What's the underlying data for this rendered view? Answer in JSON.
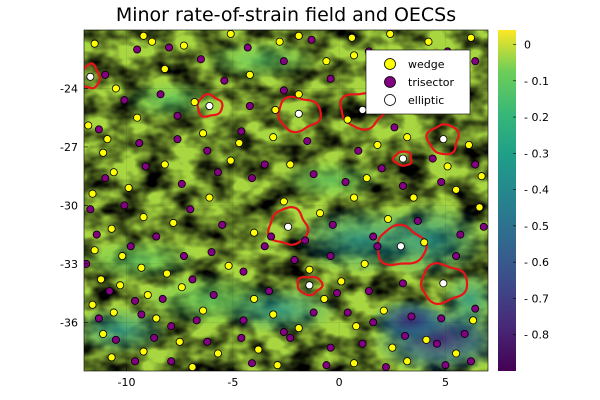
{
  "chart_data": {
    "type": "scatter",
    "title": "Minor rate-of-strain field and OECSs",
    "xlabel": "",
    "ylabel": "",
    "xlim": [
      -12,
      7
    ],
    "ylim": [
      -38.5,
      -21.0
    ],
    "xticks": [
      -10,
      -5,
      0,
      5
    ],
    "xtick_labels": [
      "-10",
      "-5",
      "0",
      "5"
    ],
    "yticks": [
      -24,
      -27,
      -30,
      -33,
      -36
    ],
    "ytick_labels": [
      "-24",
      "-27",
      "-30",
      "-33",
      "-36"
    ],
    "grid": true,
    "legend_position": "top-right",
    "background": {
      "type": "heatmap",
      "description": "minor rate-of-strain field",
      "colormap": "viridis",
      "clim": [
        -0.9,
        0.04
      ],
      "colorbar_ticks": [
        0,
        -0.1,
        -0.2,
        -0.3,
        -0.4,
        -0.5,
        -0.6,
        -0.7,
        -0.8
      ],
      "colorbar_tick_labels": [
        "0",
        "- 0.1",
        "- 0.2",
        "- 0.3",
        "- 0.4",
        "- 0.5",
        "- 0.6",
        "- 0.7",
        "- 0.8"
      ]
    },
    "series": [
      {
        "name": "wedge",
        "color": "#ffff00",
        "points": [
          [
            -11.5,
            -21.7
          ],
          [
            -9.2,
            -21.3
          ],
          [
            -8.8,
            -21.6
          ],
          [
            -7.3,
            -21.8
          ],
          [
            -5.1,
            -21.2
          ],
          [
            -2.8,
            -21.6
          ],
          [
            -1.9,
            -21.3
          ],
          [
            0.6,
            -21.4
          ],
          [
            2.4,
            -21.2
          ],
          [
            4.2,
            -21.6
          ],
          [
            6.2,
            -21.4
          ],
          [
            -10.5,
            -24.0
          ],
          [
            -8.2,
            -23.0
          ],
          [
            -6.8,
            -24.7
          ],
          [
            -4.2,
            -23.3
          ],
          [
            -0.6,
            -22.6
          ],
          [
            0.7,
            -22.3
          ],
          [
            -3.0,
            -25.1
          ],
          [
            -1.9,
            -24.3
          ],
          [
            -11.8,
            -25.9
          ],
          [
            -10.9,
            -26.6
          ],
          [
            -11.1,
            -27.3
          ],
          [
            -10.6,
            -28.3
          ],
          [
            -9.5,
            -25.5
          ],
          [
            -8.2,
            -27.9
          ],
          [
            -6.4,
            -26.3
          ],
          [
            -4.7,
            -26.8
          ],
          [
            -5.1,
            -27.7
          ],
          [
            -3.1,
            -26.5
          ],
          [
            -2.3,
            -27.9
          ],
          [
            0.4,
            -25.6
          ],
          [
            1.8,
            -26.9
          ],
          [
            1.3,
            -28.6
          ],
          [
            3.2,
            -26.5
          ],
          [
            5.1,
            -28.0
          ],
          [
            6.1,
            -26.9
          ],
          [
            6.7,
            -28.5
          ],
          [
            3.5,
            -29.6
          ],
          [
            -11.6,
            -29.4
          ],
          [
            -9.9,
            -29.1
          ],
          [
            -9.2,
            -30.6
          ],
          [
            -10.7,
            -31.2
          ],
          [
            -7.8,
            -30.9
          ],
          [
            -6.1,
            -29.6
          ],
          [
            -4.0,
            -31.4
          ],
          [
            -2.6,
            -29.8
          ],
          [
            -0.9,
            -30.4
          ],
          [
            0.7,
            -29.6
          ],
          [
            2.3,
            -30.7
          ],
          [
            4.0,
            -31.9
          ],
          [
            5.5,
            -29.2
          ],
          [
            6.6,
            -30.1
          ],
          [
            -11.5,
            -32.3
          ],
          [
            -10.2,
            -32.6
          ],
          [
            -9.3,
            -33.2
          ],
          [
            -11.2,
            -33.8
          ],
          [
            -10.3,
            -34.1
          ],
          [
            -11.6,
            -35.1
          ],
          [
            -10.6,
            -35.5
          ],
          [
            -9.0,
            -34.6
          ],
          [
            -8.1,
            -33.5
          ],
          [
            -7.4,
            -34.2
          ],
          [
            -8.6,
            -35.8
          ],
          [
            -6.4,
            -35.4
          ],
          [
            -5.2,
            -33.1
          ],
          [
            -4.0,
            -34.8
          ],
          [
            -3.1,
            -35.6
          ],
          [
            -1.4,
            -33.3
          ],
          [
            -0.7,
            -34.8
          ],
          [
            0.1,
            -33.9
          ],
          [
            1.2,
            -33.0
          ],
          [
            2.1,
            -35.4
          ],
          [
            0.8,
            -36.2
          ],
          [
            -1.9,
            -36.3
          ],
          [
            -3.8,
            -37.4
          ],
          [
            -5.7,
            -37.6
          ],
          [
            -7.5,
            -37.0
          ],
          [
            -9.2,
            -37.5
          ],
          [
            -11.1,
            -36.6
          ],
          [
            -10.7,
            -37.8
          ],
          [
            2.5,
            -37.3
          ],
          [
            4.1,
            -36.9
          ],
          [
            5.5,
            -37.6
          ],
          [
            6.3,
            -35.9
          ],
          [
            0.7,
            -38.1
          ],
          [
            3.2,
            -38.0
          ],
          [
            -2.9,
            -38.2
          ],
          [
            -6.9,
            -38.3
          ]
        ]
      },
      {
        "name": "trisector",
        "color": "#800080",
        "points": [
          [
            -9.5,
            -22.0
          ],
          [
            -8.0,
            -21.9
          ],
          [
            -6.5,
            -22.5
          ],
          [
            -4.3,
            -21.9
          ],
          [
            -2.6,
            -22.6
          ],
          [
            -1.3,
            -21.5
          ],
          [
            1.4,
            -22.1
          ],
          [
            3.2,
            -22.4
          ],
          [
            5.1,
            -22.1
          ],
          [
            6.4,
            -22.6
          ],
          [
            -11.0,
            -23.3
          ],
          [
            -10.1,
            -24.6
          ],
          [
            -8.4,
            -24.3
          ],
          [
            -7.6,
            -25.4
          ],
          [
            -5.4,
            -23.6
          ],
          [
            -4.2,
            -24.9
          ],
          [
            -2.6,
            -24.1
          ],
          [
            -0.4,
            -23.5
          ],
          [
            1.9,
            -24.4
          ],
          [
            3.0,
            -23.3
          ],
          [
            4.6,
            -24.5
          ],
          [
            6.0,
            -24.1
          ],
          [
            -11.3,
            -26.1
          ],
          [
            -9.4,
            -26.8
          ],
          [
            -7.6,
            -26.6
          ],
          [
            -6.2,
            -27.2
          ],
          [
            -4.6,
            -26.2
          ],
          [
            -3.5,
            -27.9
          ],
          [
            -1.5,
            -26.7
          ],
          [
            0.9,
            -27.2
          ],
          [
            2.6,
            -26.0
          ],
          [
            4.4,
            -27.6
          ],
          [
            6.4,
            -27.9
          ],
          [
            -11.0,
            -28.6
          ],
          [
            -9.1,
            -28.0
          ],
          [
            -7.4,
            -28.9
          ],
          [
            -5.7,
            -28.3
          ],
          [
            -4.1,
            -28.6
          ],
          [
            -1.2,
            -28.4
          ],
          [
            0.3,
            -28.8
          ],
          [
            2.0,
            -28.1
          ],
          [
            3.0,
            -29.0
          ],
          [
            4.8,
            -28.8
          ],
          [
            -11.7,
            -30.2
          ],
          [
            -10.1,
            -30.0
          ],
          [
            -8.6,
            -31.6
          ],
          [
            -7.0,
            -30.2
          ],
          [
            -5.5,
            -31.0
          ],
          [
            -3.2,
            -31.6
          ],
          [
            -1.6,
            -31.8
          ],
          [
            -0.3,
            -31.0
          ],
          [
            1.6,
            -31.6
          ],
          [
            3.7,
            -30.8
          ],
          [
            5.7,
            -31.5
          ],
          [
            6.8,
            -31.1
          ],
          [
            -11.4,
            -31.5
          ],
          [
            -9.8,
            -32.1
          ],
          [
            -7.3,
            -32.6
          ],
          [
            -6.0,
            -32.4
          ],
          [
            -3.5,
            -32.1
          ],
          [
            -2.1,
            -32.8
          ],
          [
            -0.4,
            -32.6
          ],
          [
            1.8,
            -32.1
          ],
          [
            5.5,
            -32.6
          ],
          [
            -11.9,
            -33.0
          ],
          [
            -10.8,
            -34.4
          ],
          [
            -9.6,
            -34.9
          ],
          [
            -8.3,
            -34.8
          ],
          [
            -6.9,
            -33.8
          ],
          [
            -5.9,
            -34.6
          ],
          [
            -4.5,
            -33.4
          ],
          [
            -3.3,
            -34.4
          ],
          [
            -0.1,
            -34.5
          ],
          [
            1.4,
            -34.4
          ],
          [
            3.0,
            -34.0
          ],
          [
            -11.3,
            -35.8
          ],
          [
            -9.3,
            -35.6
          ],
          [
            -7.9,
            -36.2
          ],
          [
            -6.7,
            -35.9
          ],
          [
            -4.5,
            -35.9
          ],
          [
            -2.6,
            -36.5
          ],
          [
            -1.2,
            -35.5
          ],
          [
            0.4,
            -35.5
          ],
          [
            1.6,
            -36.0
          ],
          [
            3.4,
            -35.7
          ],
          [
            4.8,
            -35.8
          ],
          [
            6.4,
            -35.3
          ],
          [
            -10.5,
            -36.9
          ],
          [
            -8.7,
            -36.8
          ],
          [
            -6.2,
            -37.0
          ],
          [
            -4.6,
            -36.8
          ],
          [
            -2.3,
            -36.8
          ],
          [
            -0.4,
            -37.3
          ],
          [
            1.1,
            -37.1
          ],
          [
            3.1,
            -36.7
          ],
          [
            4.6,
            -37.1
          ],
          [
            5.9,
            -36.6
          ],
          [
            -9.6,
            -38.0
          ],
          [
            -7.9,
            -38.0
          ],
          [
            -4.1,
            -38.1
          ],
          [
            -0.6,
            -38.2
          ],
          [
            2.2,
            -38.3
          ],
          [
            5.0,
            -38.2
          ],
          [
            6.2,
            -38.0
          ]
        ]
      },
      {
        "name": "elliptic",
        "color": "#ffffff",
        "points": [
          [
            -11.7,
            -23.4
          ],
          [
            -6.1,
            -24.9
          ],
          [
            -1.9,
            -25.3
          ],
          [
            1.1,
            -25.1
          ],
          [
            4.9,
            -26.6
          ],
          [
            3.0,
            -27.6
          ],
          [
            -2.4,
            -31.1
          ],
          [
            2.9,
            -32.1
          ],
          [
            4.9,
            -34.0
          ],
          [
            -1.4,
            -34.1
          ]
        ]
      }
    ],
    "boundaries": {
      "name": "OECS boundaries",
      "color": "#e8141a",
      "centers": [
        [
          -11.7,
          -23.4
        ],
        [
          -6.1,
          -24.9
        ],
        [
          -1.9,
          -25.3
        ],
        [
          1.1,
          -25.1
        ],
        [
          4.9,
          -26.6
        ],
        [
          3.0,
          -27.6
        ],
        [
          -2.4,
          -31.1
        ],
        [
          2.9,
          -32.1
        ],
        [
          4.9,
          -34.0
        ],
        [
          -1.4,
          -34.1
        ]
      ],
      "radii": [
        [
          0.42,
          0.62
        ],
        [
          0.58,
          0.55
        ],
        [
          1.0,
          0.86
        ],
        [
          1.05,
          0.92
        ],
        [
          0.72,
          0.76
        ],
        [
          0.42,
          0.36
        ],
        [
          0.9,
          0.94
        ],
        [
          1.15,
          1.0
        ],
        [
          1.08,
          0.98
        ],
        [
          0.58,
          0.46
        ]
      ]
    }
  }
}
